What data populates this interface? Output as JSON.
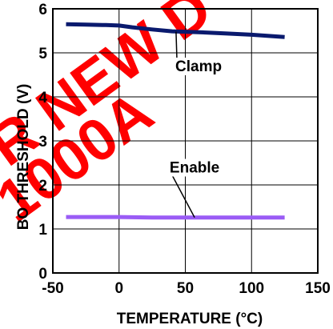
{
  "chart_data": {
    "type": "line",
    "xlabel": "TEMPERATURE (°C)",
    "ylabel": "BO THRESHOLD (V)",
    "xlim": [
      -50,
      150
    ],
    "ylim": [
      0,
      6
    ],
    "xticks": [
      "-50",
      "0",
      "50",
      "100",
      "150"
    ],
    "yticks": [
      "0",
      "1",
      "2",
      "3",
      "4",
      "5",
      "6"
    ],
    "grid": true,
    "series": [
      {
        "name": "Clamp",
        "color": "#0a1a6e",
        "x": [
          -40,
          -25,
          -10,
          0,
          10,
          25,
          40,
          60,
          80,
          100,
          125
        ],
        "y": [
          5.65,
          5.64,
          5.63,
          5.62,
          5.58,
          5.53,
          5.49,
          5.47,
          5.44,
          5.41,
          5.36
        ]
      },
      {
        "name": "Enable",
        "color": "#9a5cf5",
        "x": [
          -40,
          0,
          25,
          50,
          75,
          100,
          125
        ],
        "y": [
          1.27,
          1.27,
          1.26,
          1.26,
          1.26,
          1.26,
          1.26
        ]
      }
    ],
    "annotations": [
      {
        "text": "Clamp",
        "series": "Clamp",
        "x": 60,
        "y": 4.6,
        "arrow_to": [
          43,
          5.48
        ]
      },
      {
        "text": "Enable",
        "series": "Enable",
        "x": 57,
        "y": 2.3,
        "arrow_to": [
          57,
          1.26
        ]
      }
    ]
  },
  "watermark": {
    "lines": [
      "R NEW D",
      "1000A"
    ],
    "color": "#ff0000"
  }
}
